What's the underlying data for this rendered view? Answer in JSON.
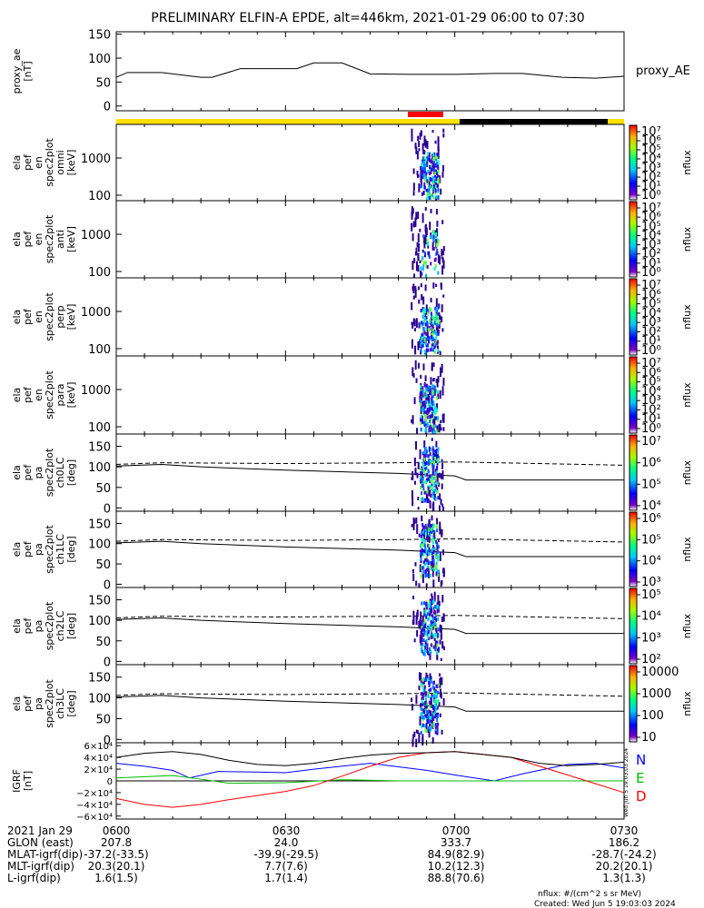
{
  "title": "PRELIMINARY ELFIN-A EPDE, alt=446km, 2021-01-29 06:00 to 07:30",
  "chart_data": [
    {
      "type": "line",
      "panel": "proxy_ae",
      "ylabel": [
        "proxy_ae",
        "[nT]"
      ],
      "yticks": [
        "150",
        "100",
        "50",
        "0"
      ],
      "ylim": [
        -10,
        155
      ],
      "legend": "proxy_AE",
      "x": [
        0,
        2,
        8,
        15,
        17,
        22,
        27,
        32,
        35,
        40,
        45,
        52,
        60,
        67,
        72,
        79,
        85,
        90
      ],
      "values": [
        60,
        70,
        70,
        60,
        60,
        78,
        78,
        78,
        90,
        90,
        67,
        66,
        66,
        68,
        68,
        60,
        58,
        62
      ]
    },
    {
      "type": "heatmap",
      "panel": "omni",
      "ylabel": [
        "ela",
        "pef",
        "en",
        "spec2plot",
        "omni",
        "[keV]"
      ],
      "yticks": [
        "1000",
        "100"
      ],
      "cbar_ticks": [
        "10⁷",
        "10⁶",
        "10⁵",
        "10⁴",
        "10³",
        "10²",
        "10¹",
        "10⁰"
      ],
      "zlabel": "nflux"
    },
    {
      "type": "heatmap",
      "panel": "anti",
      "ylabel": [
        "ela",
        "pef",
        "en",
        "spec2plot",
        "anti",
        "[keV]"
      ],
      "yticks": [
        "1000",
        "100"
      ],
      "cbar_ticks": [
        "10⁷",
        "10⁶",
        "10⁵",
        "10⁴",
        "10³",
        "10²",
        "10¹",
        "10⁰"
      ],
      "zlabel": "nflux"
    },
    {
      "type": "heatmap",
      "panel": "perp",
      "ylabel": [
        "ela",
        "pef",
        "en",
        "spec2plot",
        "perp",
        "[keV]"
      ],
      "yticks": [
        "1000",
        "100"
      ],
      "cbar_ticks": [
        "10⁷",
        "10⁶",
        "10⁵",
        "10⁴",
        "10³",
        "10²",
        "10¹",
        "10⁰"
      ],
      "zlabel": "nflux"
    },
    {
      "type": "heatmap",
      "panel": "para",
      "ylabel": [
        "ela",
        "pef",
        "en",
        "spec2plot",
        "para",
        "[keV]"
      ],
      "yticks": [
        "1000",
        "100"
      ],
      "cbar_ticks": [
        "10⁷",
        "10⁶",
        "10⁵",
        "10⁴",
        "10³",
        "10²",
        "10¹",
        "10⁰"
      ],
      "zlabel": "nflux"
    },
    {
      "type": "heatmap",
      "panel": "ch0LC",
      "ylabel": [
        "ela",
        "pef",
        "pa",
        "spec2plot",
        "ch0LC",
        "[deg]"
      ],
      "yticks": [
        "150",
        "100",
        "50",
        "0"
      ],
      "cbar_ticks": [
        "10⁷",
        "10⁶",
        "10⁵",
        "10⁴"
      ],
      "zlabel": "nflux"
    },
    {
      "type": "heatmap",
      "panel": "ch1LC",
      "ylabel": [
        "ela",
        "pef",
        "pa",
        "spec2plot",
        "ch1LC",
        "[deg]"
      ],
      "yticks": [
        "150",
        "100",
        "50",
        "0"
      ],
      "cbar_ticks": [
        "10⁶",
        "10⁵",
        "10⁴",
        "10³"
      ],
      "zlabel": "nflux"
    },
    {
      "type": "heatmap",
      "panel": "ch2LC",
      "ylabel": [
        "ela",
        "pef",
        "pa",
        "spec2plot",
        "ch2LC",
        "[deg]"
      ],
      "yticks": [
        "150",
        "100",
        "50",
        "0"
      ],
      "cbar_ticks": [
        "10⁵",
        "10⁴",
        "10³",
        "10²"
      ],
      "zlabel": "nflux"
    },
    {
      "type": "heatmap",
      "panel": "ch3LC",
      "ylabel": [
        "ela",
        "pef",
        "pa",
        "spec2plot",
        "ch3LC",
        "[deg]"
      ],
      "yticks": [
        "150",
        "100",
        "50",
        "0"
      ],
      "cbar_ticks": [
        "10000",
        "1000",
        "100",
        "10"
      ],
      "zlabel": "nflux"
    },
    {
      "type": "line",
      "panel": "IGRF",
      "ylabel": [
        "IGRF",
        "[nT]"
      ],
      "yticks": [
        "6×10⁴",
        "4×10⁴",
        "2×10⁴",
        "0",
        "−2×10⁴",
        "−4×10⁴",
        "−6×10⁴"
      ],
      "ylim": [
        -65000,
        65000
      ],
      "series": [
        {
          "name": "N",
          "color": "#0000ff",
          "x": [
            0,
            5,
            10,
            13,
            18,
            25,
            30,
            35,
            45,
            55,
            60,
            67,
            72,
            80,
            85,
            90
          ],
          "values": [
            30000,
            25000,
            18000,
            5000,
            16000,
            15000,
            14000,
            20000,
            30000,
            18000,
            10000,
            0,
            12000,
            28000,
            30000,
            22000
          ]
        },
        {
          "name": "E",
          "color": "#00bb00",
          "x": [
            0,
            10,
            15,
            20,
            30,
            40,
            50,
            60,
            70,
            80,
            90
          ],
          "values": [
            5000,
            9000,
            3000,
            -4000,
            -3000,
            2000,
            0,
            0,
            0,
            0,
            0
          ]
        },
        {
          "name": "D",
          "color": "#ff0000",
          "x": [
            0,
            5,
            10,
            15,
            20,
            25,
            30,
            35,
            40,
            45,
            50,
            55,
            60,
            65,
            70,
            75,
            80,
            85,
            90
          ],
          "values": [
            -30000,
            -40000,
            -45000,
            -40000,
            -32000,
            -25000,
            -18000,
            -8000,
            8000,
            25000,
            40000,
            48000,
            50000,
            45000,
            40000,
            25000,
            10000,
            -5000,
            -20000
          ]
        },
        {
          "color": "#000000",
          "x": [
            0,
            5,
            10,
            15,
            20,
            25,
            30,
            35,
            40,
            45,
            50,
            55,
            60,
            65,
            70,
            75,
            80,
            85,
            90
          ],
          "values": [
            40000,
            47000,
            50000,
            45000,
            35000,
            28000,
            26000,
            30000,
            38000,
            44000,
            47000,
            48000,
            50000,
            45000,
            40000,
            30000,
            26000,
            28000,
            32000
          ]
        }
      ]
    }
  ],
  "status_bar": {
    "colors": {
      "yellow": "#ffe000",
      "black": "#000000",
      "red": "#ff0000"
    }
  },
  "time_axis": {
    "labels": [
      "0600",
      "0630",
      "0700",
      "0730"
    ]
  },
  "footer": {
    "rows": [
      {
        "label": "2021 Jan 29",
        "values": [
          "0600",
          "0630",
          "0700",
          "0730"
        ]
      },
      {
        "label": "GLON (east)",
        "values": [
          "207.8",
          "24.0",
          "333.7",
          "186.2"
        ]
      },
      {
        "label": "MLAT-igrf(dip)",
        "values": [
          "-37.2(-33.5)",
          "-39.9(-29.5)",
          "84.9(82.9)",
          "-28.7(-24.2)"
        ]
      },
      {
        "label": "MLT-igrf(dip)",
        "values": [
          "20.3(20.1)",
          "7.7(7.6)",
          "10.2(12.3)",
          "20.2(20.1)"
        ]
      },
      {
        "label": "L-igrf(dip)",
        "values": [
          "1.6(1.5)",
          "1.7(1.4)",
          "88.8(70.6)",
          "1.3(1.3)"
        ]
      }
    ],
    "units_note": "nflux: #/(cm^2 s sr MeV)",
    "created": "Created: Wed Jun  5 19:03:03 2024",
    "stamp": "Wed Jun  5 19:03:03 2024"
  }
}
